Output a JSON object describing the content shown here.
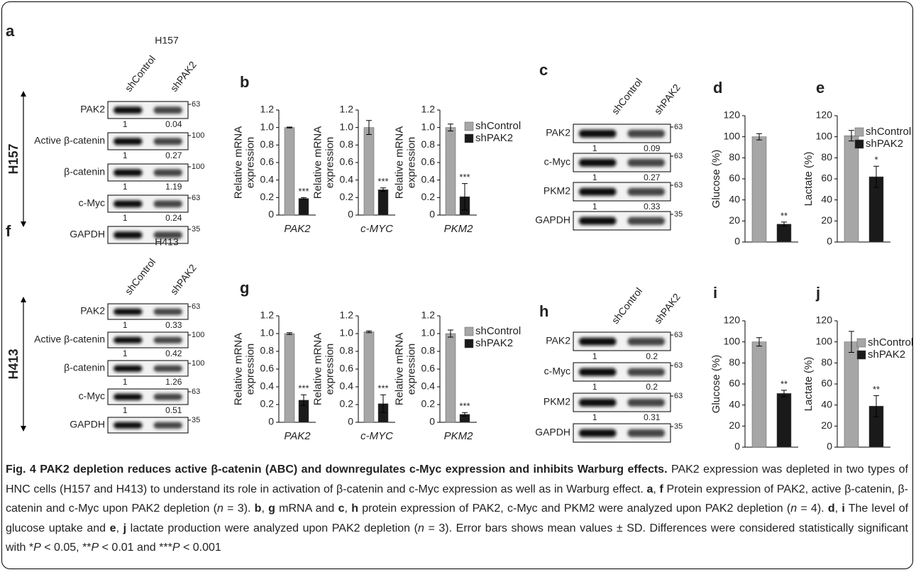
{
  "blots": [
    {
      "panel": "a",
      "cell_line": "H157",
      "side_label": "H157",
      "lanes": [
        "shControl",
        "shPAK2"
      ],
      "rows": [
        {
          "protein": "PAK2",
          "quant": [
            1,
            0.04
          ],
          "marker": 63
        },
        {
          "protein": "Active β-catenin",
          "quant": [
            1,
            0.27
          ],
          "marker": 100
        },
        {
          "protein": "β-catenin",
          "quant": [
            1,
            1.19
          ],
          "marker": 100
        },
        {
          "protein": "c-Myc",
          "quant": [
            1,
            0.24
          ],
          "marker": 63
        },
        {
          "protein": "GAPDH",
          "marker": 35
        }
      ]
    },
    {
      "panel": "f",
      "cell_line": "H413",
      "side_label": "H413",
      "lanes": [
        "shControl",
        "shPAK2"
      ],
      "rows": [
        {
          "protein": "PAK2",
          "quant": [
            1,
            0.33
          ],
          "marker": 63
        },
        {
          "protein": "Active β-catenin",
          "quant": [
            1,
            0.42
          ],
          "marker": 100
        },
        {
          "protein": "β-catenin",
          "quant": [
            1,
            1.26
          ],
          "marker": 100
        },
        {
          "protein": "c-Myc",
          "quant": [
            1,
            0.51
          ],
          "marker": 63
        },
        {
          "protein": "GAPDH",
          "marker": 35
        }
      ]
    },
    {
      "panel": "c",
      "lanes": [
        "shControl",
        "shPAK2"
      ],
      "rows": [
        {
          "protein": "PAK2",
          "quant": [
            1,
            0.09
          ],
          "marker": 63
        },
        {
          "protein": "c-Myc",
          "quant": [
            1,
            0.27
          ],
          "marker": 63
        },
        {
          "protein": "PKM2",
          "quant": [
            1,
            0.33
          ],
          "marker": 63
        },
        {
          "protein": "GAPDH",
          "marker": 35
        }
      ]
    },
    {
      "panel": "h",
      "lanes": [
        "shControl",
        "shPAK2"
      ],
      "rows": [
        {
          "protein": "PAK2",
          "quant": [
            1,
            0.2
          ],
          "marker": 63
        },
        {
          "protein": "c-Myc",
          "quant": [
            1,
            0.2
          ],
          "marker": 63
        },
        {
          "protein": "PKM2",
          "quant": [
            1,
            0.31
          ],
          "marker": 63
        },
        {
          "protein": "GAPDH",
          "marker": 35
        }
      ]
    }
  ],
  "chart_data": [
    {
      "type": "bar",
      "panel": "b",
      "ylabel": [
        "Relative mRNA",
        "expression"
      ],
      "categories": [
        "PAK2"
      ],
      "ylim": [
        0,
        1.2
      ],
      "yticks": [
        0,
        0.2,
        0.4,
        0.6,
        0.8,
        {
          "value": 1,
          "label": "1.0"
        },
        1.2
      ],
      "series": [
        {
          "color": "#a6a6a6",
          "values": [
            1.0
          ],
          "errors": [
            0.005
          ]
        },
        {
          "color": "#1a1a1a",
          "values": [
            0.19
          ],
          "errors": [
            0.01
          ],
          "annotations": [
            "***"
          ]
        }
      ]
    },
    {
      "type": "bar",
      "ylabel": [
        "Relative mRNA",
        "expression"
      ],
      "categories": [
        "c-MYC"
      ],
      "ylim": [
        0,
        1.2
      ],
      "yticks": [
        0,
        0.2,
        0.4,
        0.6,
        0.8,
        {
          "value": 1,
          "label": "1.0"
        },
        1.2
      ],
      "series": [
        {
          "color": "#a6a6a6",
          "values": [
            1.0
          ],
          "errors": [
            0.08
          ]
        },
        {
          "color": "#1a1a1a",
          "values": [
            0.29
          ],
          "errors": [
            0.02
          ],
          "annotations": [
            "***"
          ]
        }
      ]
    },
    {
      "type": "bar",
      "ylabel": [
        "Relative mRNA",
        "expression"
      ],
      "categories": [
        "PKM2"
      ],
      "ylim": [
        0,
        1.2
      ],
      "yticks": [
        0,
        0.2,
        0.4,
        0.6,
        0.8,
        {
          "value": 1,
          "label": "1.0"
        },
        1.2
      ],
      "legend": true,
      "series": [
        {
          "name": "shControl",
          "color": "#a6a6a6",
          "values": [
            1.0
          ],
          "errors": [
            0.04
          ]
        },
        {
          "name": "shPAK2",
          "color": "#1a1a1a",
          "values": [
            0.21
          ],
          "errors": [
            0.15
          ],
          "annotations": [
            "***"
          ]
        }
      ]
    },
    {
      "type": "bar",
      "panel": "d",
      "ylabel": [
        "Glucose (%)"
      ],
      "ylim": [
        0,
        120
      ],
      "yticks": [
        0,
        20,
        40,
        60,
        80,
        100,
        120
      ],
      "series": [
        {
          "color": "#a6a6a6",
          "values": [
            100
          ],
          "errors": [
            3
          ]
        },
        {
          "color": "#1a1a1a",
          "values": [
            17
          ],
          "errors": [
            2
          ],
          "annotations": [
            "**"
          ]
        }
      ]
    },
    {
      "type": "bar",
      "panel": "e",
      "ylabel": [
        "Lactate (%)"
      ],
      "ylim": [
        0,
        120
      ],
      "yticks": [
        0,
        20,
        40,
        60,
        80,
        100,
        120
      ],
      "legend": true,
      "series": [
        {
          "name": "shControl",
          "color": "#a6a6a6",
          "values": [
            101
          ],
          "errors": [
            5
          ]
        },
        {
          "name": "shPAK2",
          "color": "#1a1a1a",
          "values": [
            62
          ],
          "errors": [
            10
          ],
          "annotations": [
            "*"
          ]
        }
      ]
    },
    {
      "type": "bar",
      "panel": "g",
      "ylabel": [
        "Relative mRNA",
        "expression"
      ],
      "categories": [
        "PAK2"
      ],
      "ylim": [
        0,
        1.2
      ],
      "yticks": [
        0,
        0.2,
        0.4,
        0.6,
        0.8,
        {
          "value": 1,
          "label": "1.0"
        },
        1.2
      ],
      "series": [
        {
          "color": "#a6a6a6",
          "values": [
            1.0
          ],
          "errors": [
            0.01
          ]
        },
        {
          "color": "#1a1a1a",
          "values": [
            0.25
          ],
          "errors": [
            0.06
          ],
          "annotations": [
            "***"
          ]
        }
      ]
    },
    {
      "type": "bar",
      "ylabel": [
        "Relative mRNA",
        "expression"
      ],
      "categories": [
        "c-MYC"
      ],
      "ylim": [
        0,
        1.2
      ],
      "yticks": [
        0,
        0.2,
        0.4,
        0.6,
        0.8,
        {
          "value": 1,
          "label": "1.0"
        },
        1.2
      ],
      "series": [
        {
          "color": "#a6a6a6",
          "values": [
            1.02
          ],
          "errors": [
            0.01
          ]
        },
        {
          "color": "#1a1a1a",
          "values": [
            0.21
          ],
          "errors": [
            0.1
          ],
          "annotations": [
            "***"
          ]
        }
      ]
    },
    {
      "type": "bar",
      "ylabel": [
        "Relative mRNA",
        "expression"
      ],
      "categories": [
        "PKM2"
      ],
      "ylim": [
        0,
        1.2
      ],
      "yticks": [
        0,
        0.2,
        0.4,
        0.6,
        0.8,
        {
          "value": 1,
          "label": "1.0"
        },
        1.2
      ],
      "legend": true,
      "series": [
        {
          "name": "shControl",
          "color": "#a6a6a6",
          "values": [
            1.0
          ],
          "errors": [
            0.04
          ]
        },
        {
          "name": "shPAK2",
          "color": "#1a1a1a",
          "values": [
            0.09
          ],
          "errors": [
            0.02
          ],
          "annotations": [
            "***"
          ]
        }
      ]
    },
    {
      "type": "bar",
      "panel": "i",
      "ylabel": [
        "Glucose (%)"
      ],
      "ylim": [
        0,
        120
      ],
      "yticks": [
        0,
        20,
        40,
        60,
        80,
        100,
        120
      ],
      "series": [
        {
          "color": "#a6a6a6",
          "values": [
            100
          ],
          "errors": [
            4
          ]
        },
        {
          "color": "#1a1a1a",
          "values": [
            51
          ],
          "errors": [
            3
          ],
          "annotations": [
            "**"
          ]
        }
      ]
    },
    {
      "type": "bar",
      "panel": "j",
      "ylabel": [
        "Lactate (%)"
      ],
      "ylim": [
        0,
        120
      ],
      "yticks": [
        0,
        20,
        40,
        60,
        80,
        100,
        120
      ],
      "legend": true,
      "series": [
        {
          "name": "shControl",
          "color": "#a6a6a6",
          "values": [
            100
          ],
          "errors": [
            10
          ]
        },
        {
          "name": "shPAK2",
          "color": "#1a1a1a",
          "values": [
            39
          ],
          "errors": [
            10
          ],
          "annotations": [
            "**"
          ]
        }
      ]
    }
  ],
  "caption": {
    "title": "Fig. 4 PAK2 depletion reduces active β-catenin (ABC) and downregulates c-Myc expression and inhibits Warburg effects.",
    "runs": [
      {
        "text": " PAK2 expression was depleted in two types of HNC cells (H157 and H413) to understand its role in activation of β-catenin and c-Myc expression as well as in Warburg effect. "
      },
      {
        "text": "a",
        "style": "bold"
      },
      {
        "text": ", "
      },
      {
        "text": "f",
        "style": "bold"
      },
      {
        "text": " Protein expression of PAK2, active β-catenin, β-catenin and c-Myc upon PAK2 depletion ("
      },
      {
        "text": "n",
        "style": "italic"
      },
      {
        "text": " = 3). "
      },
      {
        "text": "b",
        "style": "bold"
      },
      {
        "text": ", "
      },
      {
        "text": "g",
        "style": "bold"
      },
      {
        "text": " mRNA and "
      },
      {
        "text": "c",
        "style": "bold"
      },
      {
        "text": ", "
      },
      {
        "text": "h",
        "style": "bold"
      },
      {
        "text": " protein expression of PAK2, c-Myc and PKM2 were analyzed upon PAK2 depletion ("
      },
      {
        "text": "n",
        "style": "italic"
      },
      {
        "text": " = 4). "
      },
      {
        "text": "d",
        "style": "bold"
      },
      {
        "text": ", "
      },
      {
        "text": "i",
        "style": "bold"
      },
      {
        "text": " The level of glucose uptake and "
      },
      {
        "text": "e",
        "style": "bold"
      },
      {
        "text": ", "
      },
      {
        "text": "j",
        "style": "bold"
      },
      {
        "text": " lactate production were analyzed upon PAK2 depletion ("
      },
      {
        "text": "n",
        "style": "italic"
      },
      {
        "text": " = 3). Error bars shows mean values ± SD. Differences were considered statistically significant with *"
      },
      {
        "text": "P",
        "style": "italic"
      },
      {
        "text": " < 0.05, **"
      },
      {
        "text": "P",
        "style": "italic"
      },
      {
        "text": " < 0.01 and ***"
      },
      {
        "text": "P",
        "style": "italic"
      },
      {
        "text": " < 0.001"
      }
    ]
  }
}
